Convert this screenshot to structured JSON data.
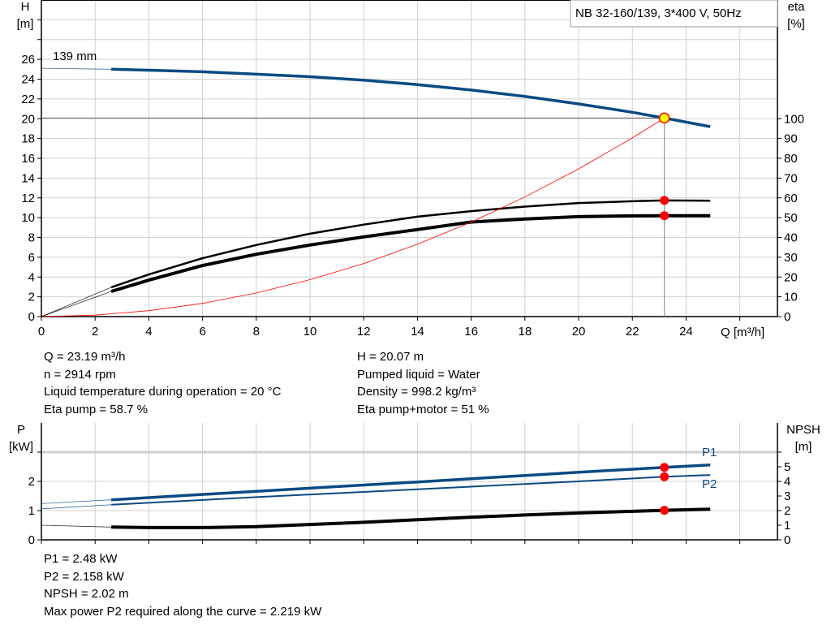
{
  "chart_data": [
    {
      "type": "line",
      "title": "NB 32-160/139, 3*400 V, 50Hz",
      "impeller_label": "139 mm",
      "xlabel": "Q [m³/h]",
      "ylabel_left": [
        "H",
        "[m]"
      ],
      "ylabel_right": [
        "eta",
        "[%]"
      ],
      "xlim": [
        0,
        27.4
      ],
      "ylim_left": [
        0,
        32
      ],
      "ylim_right": [
        0,
        160
      ],
      "xticks": [
        0,
        2,
        4,
        6,
        8,
        10,
        12,
        14,
        16,
        18,
        20,
        22,
        24
      ],
      "yticks_left": [
        0,
        2,
        4,
        6,
        8,
        10,
        12,
        14,
        16,
        18,
        20,
        22,
        24,
        26
      ],
      "yticks_right": [
        0,
        10,
        20,
        30,
        40,
        50,
        60,
        70,
        80,
        90,
        100
      ],
      "grid": true,
      "series": [
        {
          "key": "H",
          "axis": "left",
          "color": "#0b4a82",
          "extrapolated": [
            [
              0,
              25.1
            ],
            [
              2.6,
              25.0
            ]
          ],
          "points": [
            [
              2.6,
              25.0
            ],
            [
              4,
              24.9
            ],
            [
              6,
              24.75
            ],
            [
              8,
              24.5
            ],
            [
              10,
              24.25
            ],
            [
              12,
              23.9
            ],
            [
              14,
              23.45
            ],
            [
              16,
              22.9
            ],
            [
              18,
              22.25
            ],
            [
              20,
              21.5
            ],
            [
              22,
              20.65
            ],
            [
              23.19,
              20.07
            ],
            [
              24.9,
              19.2
            ]
          ]
        },
        {
          "key": "eta_pump",
          "axis": "right",
          "color": "#000000",
          "extrapolated": [
            [
              0,
              0
            ],
            [
              2.6,
              14.8
            ]
          ],
          "points": [
            [
              2.6,
              14.8
            ],
            [
              4,
              21.3
            ],
            [
              6,
              29.5
            ],
            [
              8,
              36.2
            ],
            [
              10,
              41.9
            ],
            [
              12,
              46.5
            ],
            [
              14,
              50.5
            ],
            [
              16,
              53.3
            ],
            [
              18,
              55.6
            ],
            [
              20,
              57.4
            ],
            [
              22,
              58.3
            ],
            [
              23.19,
              58.7
            ],
            [
              24.9,
              58.6
            ]
          ]
        },
        {
          "key": "eta_pump_motor",
          "axis": "right",
          "color": "#000000",
          "extrapolated": [
            [
              0,
              0
            ],
            [
              2.6,
              12.7
            ]
          ],
          "points": [
            [
              2.6,
              12.7
            ],
            [
              4,
              18.4
            ],
            [
              6,
              25.8
            ],
            [
              8,
              31.5
            ],
            [
              10,
              36.2
            ],
            [
              12,
              40.3
            ],
            [
              14,
              44.0
            ],
            [
              16,
              47.8
            ],
            [
              18,
              49.3
            ],
            [
              20,
              50.5
            ],
            [
              22,
              50.9
            ],
            [
              23.19,
              51.0
            ],
            [
              24.9,
              51.0
            ]
          ]
        },
        {
          "key": "system_curve",
          "axis": "left",
          "color": "#ff0000",
          "points": [
            [
              0,
              0
            ],
            [
              2,
              0.15
            ],
            [
              4,
              0.6
            ],
            [
              6,
              1.34
            ],
            [
              8,
              2.39
            ],
            [
              10,
              3.73
            ],
            [
              12,
              5.37
            ],
            [
              14,
              7.31
            ],
            [
              16,
              9.55
            ],
            [
              18,
              12.09
            ],
            [
              20,
              14.93
            ],
            [
              22,
              18.06
            ],
            [
              23.19,
              20.07
            ]
          ]
        }
      ],
      "operating_point": {
        "Q": 23.19,
        "H": 20.07,
        "eta_pump": 58.7,
        "eta_pump_motor": 51
      }
    },
    {
      "type": "line",
      "xlim": [
        0,
        27.4
      ],
      "ylabel_left": [
        "P",
        "[kW]"
      ],
      "ylabel_right": [
        "NPSH",
        "[m]"
      ],
      "ylim_left": [
        0,
        4
      ],
      "ylim_right": [
        0,
        8
      ],
      "yticks_left": [
        0,
        1,
        2
      ],
      "yticks_right": [
        0,
        1,
        2,
        3,
        4,
        5
      ],
      "grid": true,
      "series": [
        {
          "key": "P1",
          "name": "P1",
          "axis": "left",
          "color": "#0b4a82",
          "extrapolated": [
            [
              0,
              1.24
            ],
            [
              2.6,
              1.37
            ]
          ],
          "points": [
            [
              2.6,
              1.37
            ],
            [
              8,
              1.66
            ],
            [
              14,
              1.98
            ],
            [
              20,
              2.31
            ],
            [
              23.19,
              2.48
            ],
            [
              24.9,
              2.56
            ]
          ]
        },
        {
          "key": "P2",
          "name": "P2",
          "axis": "left",
          "color": "#0b4a82",
          "extrapolated": [
            [
              0,
              1.06
            ],
            [
              2.6,
              1.2
            ]
          ],
          "points": [
            [
              2.6,
              1.2
            ],
            [
              8,
              1.46
            ],
            [
              14,
              1.73
            ],
            [
              20,
              2.0
            ],
            [
              23.19,
              2.158
            ],
            [
              24.9,
              2.22
            ]
          ]
        },
        {
          "key": "NPSH",
          "axis": "right",
          "color": "#000000",
          "extrapolated": [
            [
              0,
              1.0
            ],
            [
              2.6,
              0.87
            ]
          ],
          "points": [
            [
              2.6,
              0.87
            ],
            [
              4,
              0.84
            ],
            [
              6,
              0.84
            ],
            [
              8,
              0.9
            ],
            [
              10,
              1.05
            ],
            [
              12,
              1.2
            ],
            [
              14,
              1.38
            ],
            [
              16,
              1.55
            ],
            [
              18,
              1.7
            ],
            [
              20,
              1.84
            ],
            [
              22,
              1.95
            ],
            [
              23.19,
              2.02
            ],
            [
              24.9,
              2.1
            ]
          ]
        }
      ],
      "operating_point": {
        "Q": 23.19,
        "P1": 2.48,
        "P2": 2.158,
        "NPSH": 2.02
      }
    }
  ],
  "results_top": {
    "left": [
      "Q = 23.19 m³/h",
      "n = 2914 rpm",
      "Liquid temperature during operation = 20 °C",
      "Eta pump = 58.7 %"
    ],
    "right": [
      "H = 20.07 m",
      "Pumped liquid = Water",
      "Density = 998.2 kg/m³",
      "Eta pump+motor = 51 %"
    ]
  },
  "results_bottom": [
    "P1 = 2.48 kW",
    "P2 = 2.158 kW",
    "NPSH = 2.02 m",
    "Max power P2 required along the curve = 2.219 kW"
  ],
  "colors": {
    "curve_blue": "#0b4a82",
    "operating_marker": "#ff0000",
    "duty_point_fill": "#ffff00",
    "grid": "#d0d0d0"
  }
}
